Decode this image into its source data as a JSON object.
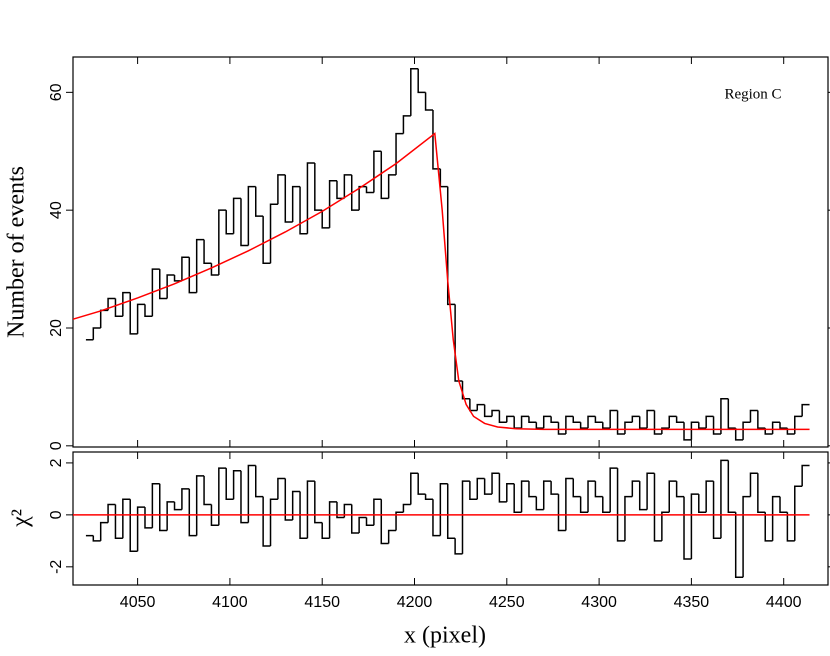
{
  "chart_data": [
    {
      "type": "histogram",
      "ylabel": "Number of events",
      "annotation": "Region C",
      "color": "#000000",
      "bins": [
        4022,
        4026,
        4030,
        4034,
        4038,
        4042,
        4046,
        4050,
        4054,
        4058,
        4062,
        4066,
        4070,
        4074,
        4078,
        4082,
        4086,
        4090,
        4094,
        4098,
        4102,
        4106,
        4110,
        4114,
        4118,
        4122,
        4126,
        4130,
        4134,
        4138,
        4142,
        4146,
        4150,
        4154,
        4158,
        4162,
        4166,
        4170,
        4174,
        4178,
        4182,
        4186,
        4190,
        4194,
        4198,
        4202,
        4206,
        4210,
        4214,
        4218,
        4222,
        4226,
        4230,
        4234,
        4238,
        4242,
        4246,
        4250,
        4254,
        4258,
        4262,
        4266,
        4270,
        4274,
        4278,
        4282,
        4286,
        4290,
        4294,
        4298,
        4302,
        4306,
        4310,
        4314,
        4318,
        4322,
        4326,
        4330,
        4334,
        4338,
        4342,
        4346,
        4350,
        4354,
        4358,
        4362,
        4366,
        4370,
        4374,
        4378,
        4382,
        4386,
        4390,
        4394,
        4398,
        4402,
        4406,
        4410,
        4414
      ],
      "values": [
        18,
        20,
        23,
        25,
        22,
        26,
        19,
        24,
        22,
        30,
        25,
        29,
        28,
        32,
        26,
        35,
        31,
        29,
        40,
        36,
        42,
        34,
        44,
        39,
        31,
        41,
        46,
        38,
        44,
        36,
        48,
        40,
        37,
        45,
        42,
        46,
        40,
        44,
        43,
        50,
        42,
        46,
        53,
        56,
        64,
        60,
        57,
        47,
        44,
        24,
        11,
        8,
        6,
        7,
        5,
        6,
        4,
        5,
        3,
        5,
        4,
        3,
        5,
        4,
        2,
        5,
        4,
        3,
        5,
        4,
        3,
        6,
        2,
        4,
        5,
        3,
        6,
        2,
        3,
        5,
        4,
        1,
        4,
        3,
        5,
        2,
        8,
        3,
        1,
        4,
        6,
        3,
        2,
        4,
        3,
        2,
        5,
        7
      ],
      "fit": {
        "color": "#ff0000",
        "x": [
          4015,
          4030,
          4050,
          4070,
          4090,
          4110,
          4130,
          4150,
          4170,
          4190,
          4211,
          4215,
          4218,
          4221,
          4224,
          4228,
          4232,
          4238,
          4245,
          4255,
          4270,
          4300,
          4414
        ],
        "y": [
          21.5,
          22.9,
          25.1,
          27.5,
          30.2,
          33.1,
          36.3,
          39.8,
          43.7,
          47.9,
          53,
          40,
          28,
          18,
          11,
          7,
          5,
          3.8,
          3.2,
          2.9,
          2.8,
          2.8,
          2.8
        ]
      },
      "xlim": [
        4015,
        4424
      ],
      "ylim": [
        -0.2,
        66
      ],
      "yticks": [
        0,
        20,
        40,
        60
      ]
    },
    {
      "type": "histogram",
      "ylabel": "χ²",
      "xlabel": "x (pixel)",
      "color": "#000000",
      "bins": [
        4022,
        4026,
        4030,
        4034,
        4038,
        4042,
        4046,
        4050,
        4054,
        4058,
        4062,
        4066,
        4070,
        4074,
        4078,
        4082,
        4086,
        4090,
        4094,
        4098,
        4102,
        4106,
        4110,
        4114,
        4118,
        4122,
        4126,
        4130,
        4134,
        4138,
        4142,
        4146,
        4150,
        4154,
        4158,
        4162,
        4166,
        4170,
        4174,
        4178,
        4182,
        4186,
        4190,
        4194,
        4198,
        4202,
        4206,
        4210,
        4214,
        4218,
        4222,
        4226,
        4230,
        4234,
        4238,
        4242,
        4246,
        4250,
        4254,
        4258,
        4262,
        4266,
        4270,
        4274,
        4278,
        4282,
        4286,
        4290,
        4294,
        4298,
        4302,
        4306,
        4310,
        4314,
        4318,
        4322,
        4326,
        4330,
        4334,
        4338,
        4342,
        4346,
        4350,
        4354,
        4358,
        4362,
        4366,
        4370,
        4374,
        4378,
        4382,
        4386,
        4390,
        4394,
        4398,
        4402,
        4406,
        4410,
        4414
      ],
      "values": [
        -0.8,
        -1.0,
        -0.3,
        0.4,
        -0.9,
        0.6,
        -1.4,
        0.3,
        -0.5,
        1.2,
        -0.6,
        0.5,
        0.2,
        1.0,
        -0.8,
        1.5,
        0.4,
        -0.4,
        1.8,
        0.6,
        1.7,
        -0.3,
        1.9,
        0.7,
        -1.2,
        0.6,
        1.4,
        -0.2,
        0.9,
        -0.9,
        1.3,
        -0.3,
        -0.9,
        0.5,
        -0.1,
        0.4,
        -0.7,
        -0.1,
        -0.4,
        0.6,
        -1.1,
        -0.6,
        0.1,
        0.4,
        1.6,
        0.8,
        0.6,
        -0.8,
        1.2,
        -0.9,
        -1.5,
        1.3,
        0.6,
        1.4,
        0.8,
        1.6,
        0.5,
        1.2,
        0.1,
        1.3,
        0.7,
        0.2,
        1.3,
        0.8,
        -0.6,
        1.4,
        0.7,
        0.1,
        1.3,
        0.7,
        0.1,
        1.8,
        -1.0,
        0.7,
        1.3,
        0.2,
        1.6,
        -1.0,
        0.1,
        1.3,
        0.7,
        -1.7,
        0.8,
        0.1,
        1.3,
        -0.9,
        2.1,
        0.1,
        -2.4,
        0.7,
        1.6,
        0.1,
        -1.0,
        0.7,
        0.1,
        -1.0,
        1.1,
        1.9
      ],
      "fit": {
        "color": "#ff0000",
        "x": [
          4015,
          4414
        ],
        "y": [
          0,
          0
        ]
      },
      "xlim": [
        4015,
        4424
      ],
      "ylim": [
        -2.7,
        2.42
      ],
      "yticks": [
        -2,
        0,
        2
      ],
      "xticks": [
        4050,
        4100,
        4150,
        4200,
        4250,
        4300,
        4350,
        4400
      ]
    }
  ]
}
